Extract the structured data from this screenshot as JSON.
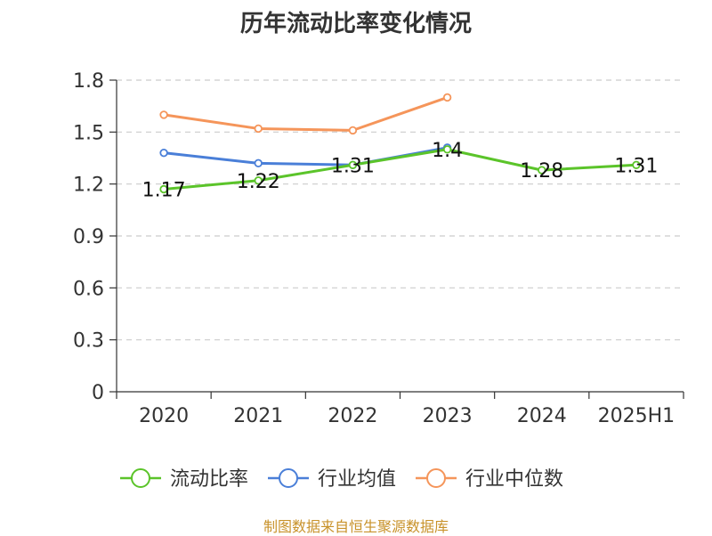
{
  "chart_data": {
    "type": "line",
    "title": "历年流动比率变化情况",
    "categories": [
      "2020",
      "2021",
      "2022",
      "2023",
      "2024",
      "2025H1"
    ],
    "ylim": [
      0,
      1.8
    ],
    "yticks": [
      "0",
      "0.3",
      "0.6",
      "0.9",
      "1.2",
      "1.5",
      "1.8"
    ],
    "grid": true,
    "legend_position": "bottom",
    "series": [
      {
        "name": "流动比率",
        "color": "#5bc42a",
        "values": [
          1.17,
          1.22,
          1.31,
          1.4,
          1.28,
          1.31
        ],
        "data_labels": [
          "1.17",
          "1.22",
          "1.31",
          "1.4",
          "1.28",
          "1.31"
        ]
      },
      {
        "name": "行业均值",
        "color": "#4a7fd8",
        "values": [
          1.38,
          1.32,
          1.31,
          1.41,
          null,
          null
        ]
      },
      {
        "name": "行业中位数",
        "color": "#f5955a",
        "values": [
          1.6,
          1.52,
          1.51,
          1.7,
          null,
          null
        ]
      }
    ]
  },
  "source_note": "制图数据来自恒生聚源数据库"
}
